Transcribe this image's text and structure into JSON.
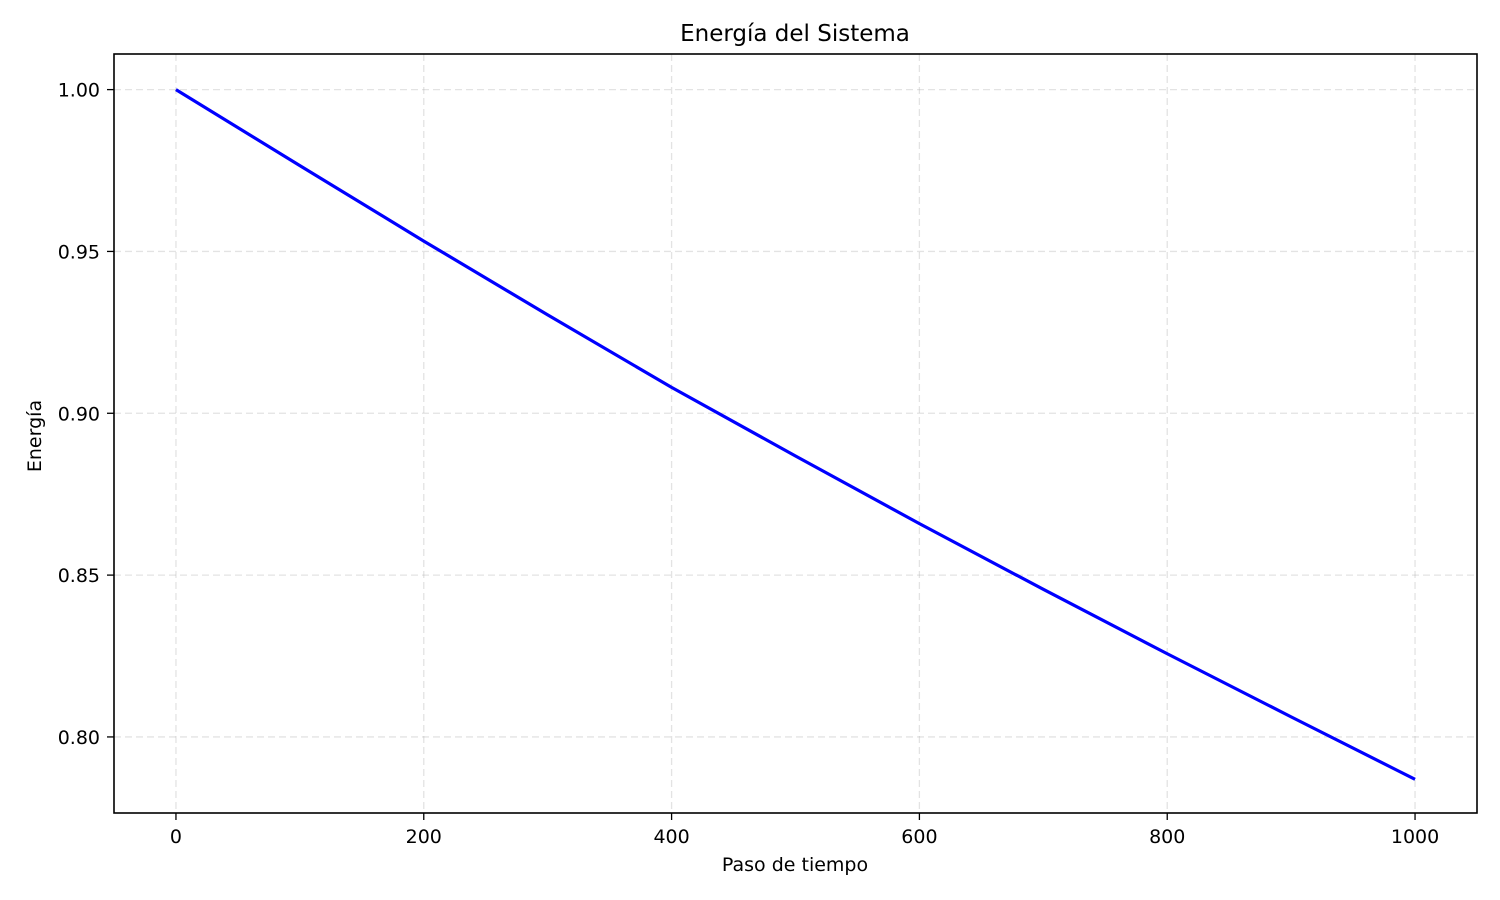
{
  "chart_data": {
    "type": "line",
    "title": "Energía del Sistema",
    "xlabel": "Paso de tiempo",
    "ylabel": "Energía",
    "xlim": [
      -50,
      1050
    ],
    "ylim": [
      0.7765,
      1.011
    ],
    "xticks": [
      0,
      200,
      400,
      600,
      800,
      1000
    ],
    "yticks": [
      0.8,
      0.85,
      0.9,
      0.95,
      1.0
    ],
    "xtick_labels": [
      "0",
      "200",
      "400",
      "600",
      "800",
      "1000"
    ],
    "ytick_labels": [
      "0.80",
      "0.85",
      "0.90",
      "0.95",
      "1.00"
    ],
    "grid": true,
    "legend": "none",
    "series": [
      {
        "color": "#0000ff",
        "x": [
          0,
          100,
          200,
          300,
          400,
          500,
          600,
          700,
          800,
          900,
          1000
        ],
        "y": [
          1.0,
          0.9765,
          0.9532,
          0.9304,
          0.908,
          0.8868,
          0.8659,
          0.8456,
          0.8257,
          0.8062,
          0.7869
        ]
      }
    ]
  }
}
